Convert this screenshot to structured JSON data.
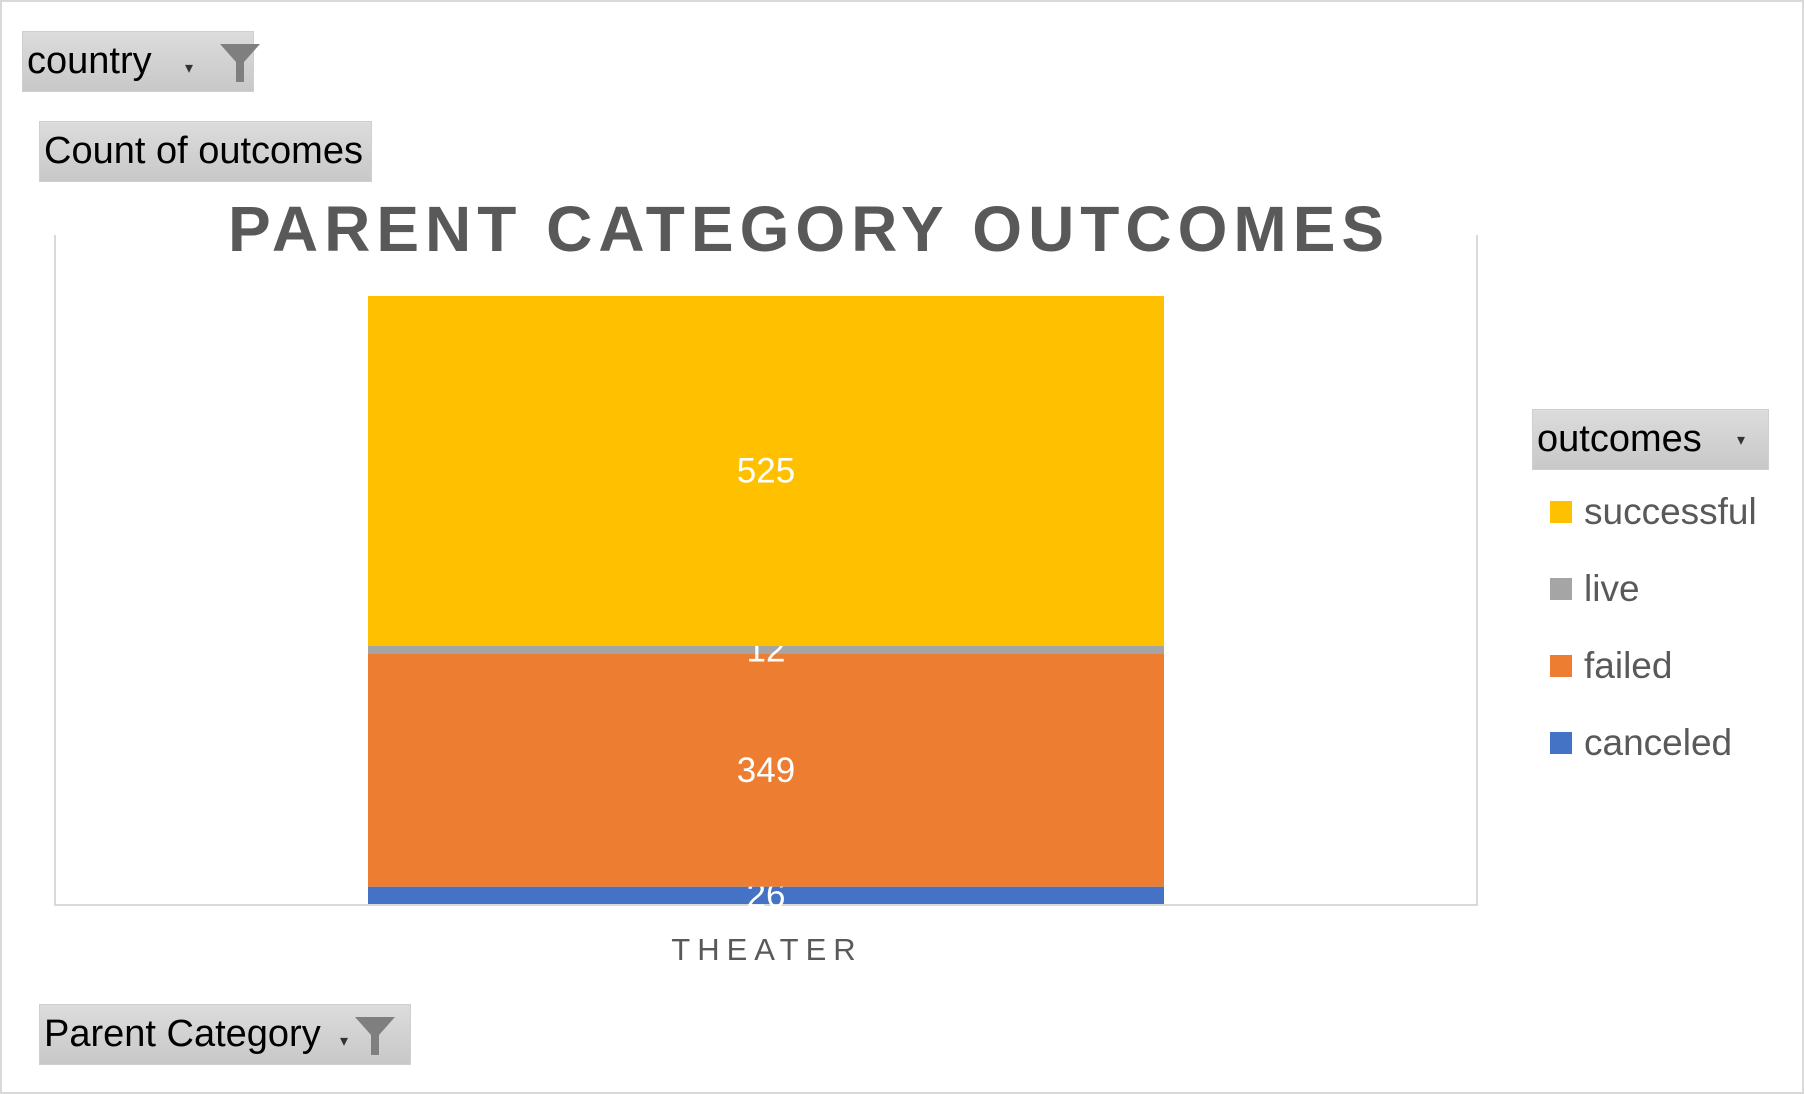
{
  "filters": {
    "country": "country",
    "values_field": "Count of outcomes",
    "axis_field": "Parent Category",
    "legend_field": "outcomes"
  },
  "colors": {
    "successful": "#FFC000",
    "live": "#A5A5A5",
    "failed": "#ED7D31",
    "canceled": "#4472C4"
  },
  "chart_data": {
    "type": "bar",
    "stacked": true,
    "title": "PARENT CATEGORY OUTCOMES",
    "categories": [
      "THEATER"
    ],
    "series": [
      {
        "name": "canceled",
        "values": [
          26
        ],
        "color": "#4472C4"
      },
      {
        "name": "failed",
        "values": [
          349
        ],
        "color": "#ED7D31"
      },
      {
        "name": "live",
        "values": [
          12
        ],
        "color": "#A5A5A5"
      },
      {
        "name": "successful",
        "values": [
          525
        ],
        "color": "#FFC000"
      }
    ],
    "legend": [
      "successful",
      "live",
      "failed",
      "canceled"
    ],
    "legend_position": "right",
    "data_labels": true,
    "grid": false
  }
}
